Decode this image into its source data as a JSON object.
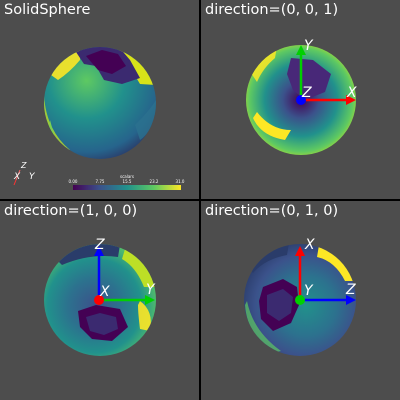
{
  "panels": [
    {
      "title": "SolidSphere",
      "scalar_bar": {
        "title": "scalars",
        "ticks": [
          "0.00",
          "7.75",
          "15.5",
          "23.2",
          "31.0"
        ],
        "colormap": [
          "#440154",
          "#3b528b",
          "#21918c",
          "#5ec962",
          "#fde725"
        ]
      },
      "orientation_widget": {
        "labels": [
          "Z",
          "X",
          "Y"
        ]
      }
    },
    {
      "title": "direction=(0, 0, 1)",
      "axes": {
        "up_label": "Y",
        "right_label": "X",
        "center_label": "Z"
      }
    },
    {
      "title": "direction=(1, 0, 0)",
      "axes": {
        "up_label": "Z",
        "right_label": "Y",
        "center_label": "X"
      }
    },
    {
      "title": "direction=(0, 1, 0)",
      "axes": {
        "up_label": "X",
        "right_label": "Z",
        "center_label": "Y"
      }
    }
  ],
  "colors": {
    "background": "#4d4d4d",
    "x_axis": "#ff0000",
    "y_axis": "#00d000",
    "z_axis": "#0000ff"
  }
}
